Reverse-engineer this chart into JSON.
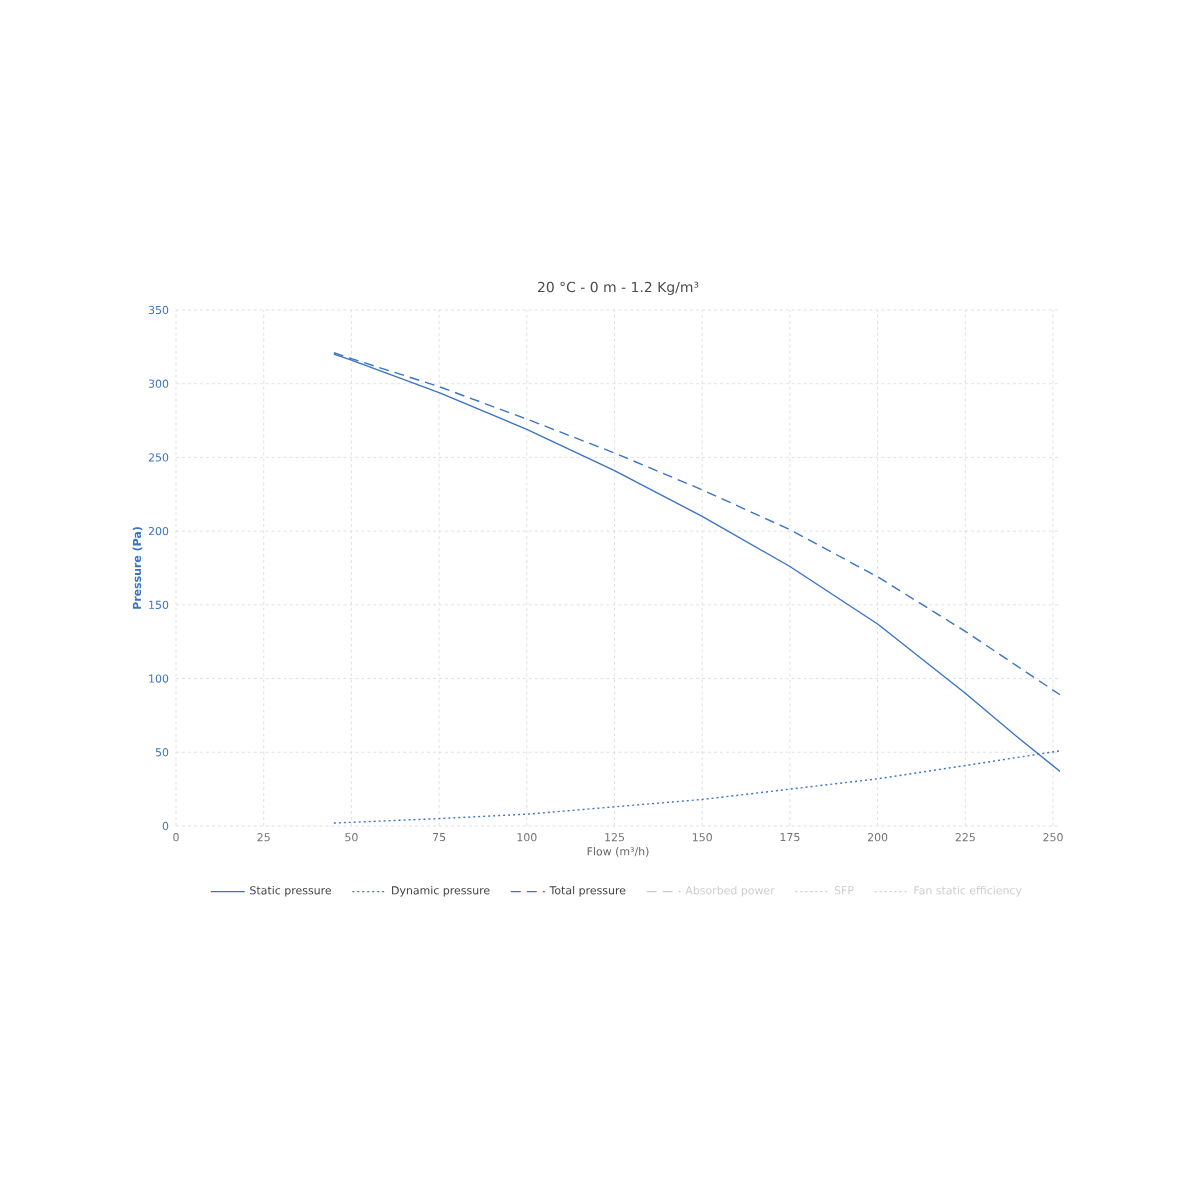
{
  "chart_data": {
    "type": "line",
    "title": "20 °C - 0 m - 1.2 Kg/m³",
    "xlabel": "Flow (m³/h)",
    "ylabel": "Pressure (Pa)",
    "xlim": [
      0,
      252
    ],
    "xticks": [
      0,
      25,
      50,
      75,
      100,
      125,
      150,
      175,
      200,
      225,
      250
    ],
    "ylim": [
      0,
      350
    ],
    "yticks": [
      0,
      50,
      100,
      150,
      200,
      250,
      300,
      350
    ],
    "grid": true,
    "legend": "bottom",
    "series": [
      {
        "name": "Static pressure",
        "color": "#3a73c4",
        "line_style": "solid",
        "x": [
          45,
          50,
          75,
          100,
          125,
          150,
          175,
          200,
          225,
          240,
          252
        ],
        "values": [
          320,
          316,
          294,
          269,
          241,
          210,
          176,
          137,
          90,
          60,
          37
        ]
      },
      {
        "name": "Dynamic pressure",
        "color": "#3a73c4",
        "line_style": "dotted",
        "x": [
          45,
          75,
          100,
          125,
          150,
          175,
          200,
          225,
          252
        ],
        "values": [
          2,
          5,
          8,
          13,
          18,
          25,
          32,
          41,
          51
        ]
      },
      {
        "name": "Total pressure",
        "color": "#3a73c4",
        "line_style": "dashed",
        "x": [
          45,
          50,
          75,
          100,
          125,
          150,
          175,
          200,
          225,
          252
        ],
        "values": [
          321,
          317,
          298,
          276,
          253,
          228,
          201,
          169,
          132,
          89
        ]
      },
      {
        "name": "Absorbed power",
        "color": "#cccccc",
        "line_style": "dashed"
      },
      {
        "name": "SFP",
        "color": "#cccccc",
        "line_style": "dotted"
      },
      {
        "name": "Fan static efficiency",
        "color": "#cccccc",
        "line_style": "dotted"
      }
    ]
  }
}
